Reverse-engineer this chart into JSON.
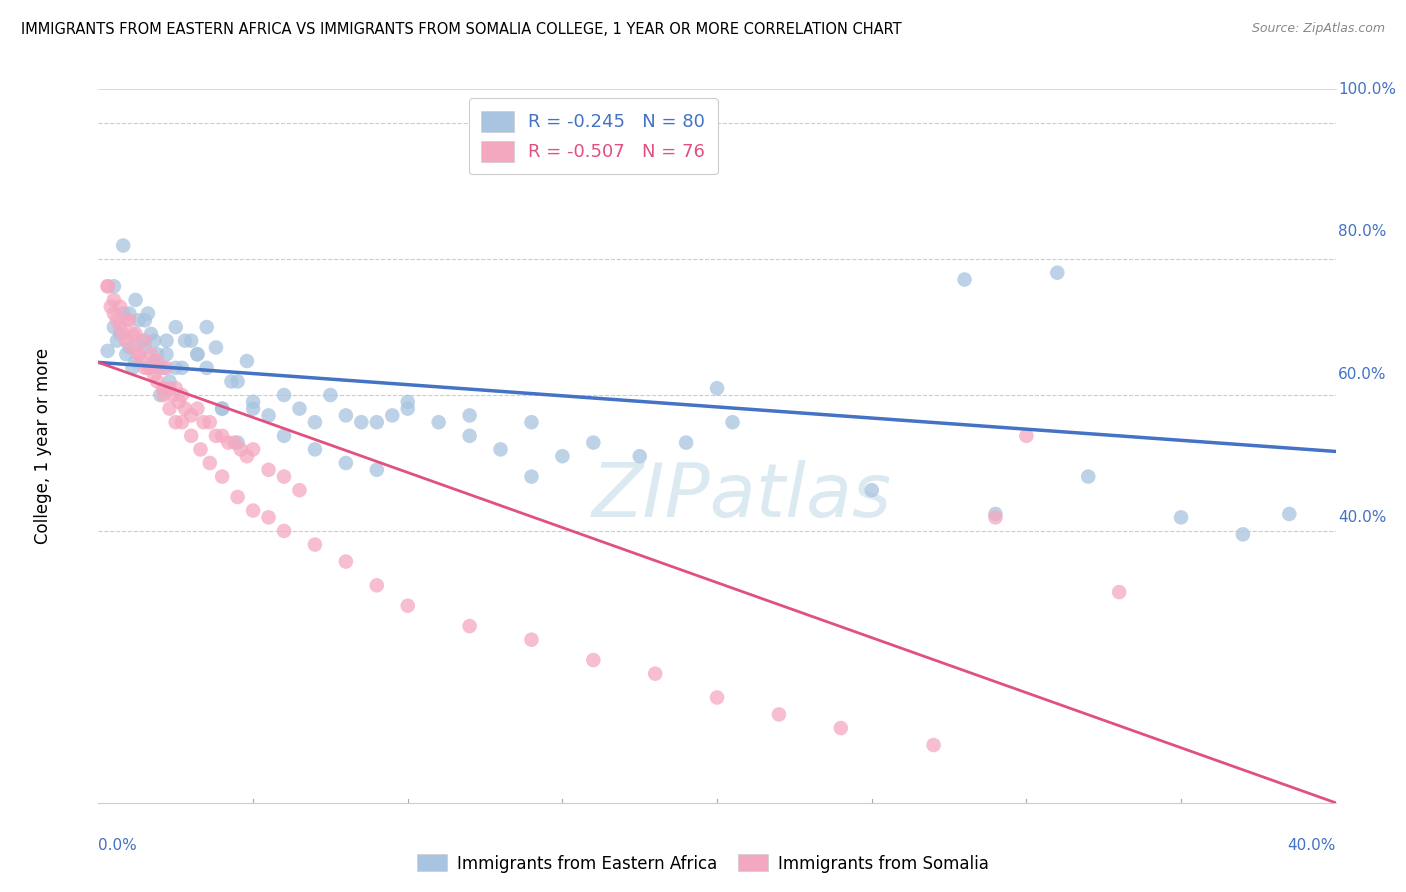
{
  "title": "IMMIGRANTS FROM EASTERN AFRICA VS IMMIGRANTS FROM SOMALIA COLLEGE, 1 YEAR OR MORE CORRELATION CHART",
  "source": "Source: ZipAtlas.com",
  "ylabel": "College, 1 year or more",
  "legend_label1": "Immigrants from Eastern Africa",
  "legend_label2": "Immigrants from Somalia",
  "R1": -0.245,
  "N1": 80,
  "R2": -0.507,
  "N2": 76,
  "color_blue": "#a8c4e0",
  "color_pink": "#f4a8c0",
  "line_color_blue": "#4472c4",
  "line_color_pink": "#e05080",
  "watermark": "ZIPatlas",
  "xlim": [
    0.0,
    0.4
  ],
  "ylim": [
    0.0,
    1.05
  ],
  "blue_line_x0": 0.0,
  "blue_line_y0": 0.648,
  "blue_line_x1": 0.4,
  "blue_line_y1": 0.517,
  "pink_line_x0": 0.0,
  "pink_line_y0": 0.648,
  "pink_line_x1": 0.4,
  "pink_line_y1": 0.0,
  "blue_points_x": [
    0.003,
    0.005,
    0.006,
    0.007,
    0.008,
    0.009,
    0.01,
    0.011,
    0.012,
    0.013,
    0.014,
    0.015,
    0.016,
    0.017,
    0.018,
    0.019,
    0.02,
    0.021,
    0.022,
    0.023,
    0.025,
    0.027,
    0.03,
    0.032,
    0.035,
    0.038,
    0.04,
    0.043,
    0.045,
    0.048,
    0.05,
    0.055,
    0.06,
    0.065,
    0.07,
    0.075,
    0.08,
    0.085,
    0.09,
    0.095,
    0.1,
    0.11,
    0.12,
    0.13,
    0.14,
    0.15,
    0.16,
    0.175,
    0.19,
    0.205,
    0.005,
    0.008,
    0.01,
    0.012,
    0.015,
    0.018,
    0.022,
    0.025,
    0.028,
    0.032,
    0.035,
    0.04,
    0.045,
    0.05,
    0.06,
    0.07,
    0.08,
    0.09,
    0.1,
    0.12,
    0.14,
    0.2,
    0.25,
    0.29,
    0.32,
    0.35,
    0.37,
    0.385,
    0.28,
    0.31
  ],
  "blue_points_y": [
    0.665,
    0.7,
    0.68,
    0.69,
    0.72,
    0.66,
    0.67,
    0.64,
    0.65,
    0.71,
    0.68,
    0.67,
    0.72,
    0.69,
    0.65,
    0.66,
    0.6,
    0.64,
    0.68,
    0.62,
    0.7,
    0.64,
    0.68,
    0.66,
    0.7,
    0.67,
    0.58,
    0.62,
    0.62,
    0.65,
    0.59,
    0.57,
    0.6,
    0.58,
    0.56,
    0.6,
    0.57,
    0.56,
    0.56,
    0.57,
    0.58,
    0.56,
    0.57,
    0.52,
    0.56,
    0.51,
    0.53,
    0.51,
    0.53,
    0.56,
    0.76,
    0.82,
    0.72,
    0.74,
    0.71,
    0.68,
    0.66,
    0.64,
    0.68,
    0.66,
    0.64,
    0.58,
    0.53,
    0.58,
    0.54,
    0.52,
    0.5,
    0.49,
    0.59,
    0.54,
    0.48,
    0.61,
    0.46,
    0.425,
    0.48,
    0.42,
    0.395,
    0.425,
    0.77,
    0.78
  ],
  "pink_points_x": [
    0.003,
    0.004,
    0.005,
    0.006,
    0.007,
    0.008,
    0.009,
    0.01,
    0.011,
    0.012,
    0.013,
    0.014,
    0.015,
    0.016,
    0.017,
    0.018,
    0.019,
    0.02,
    0.021,
    0.022,
    0.023,
    0.024,
    0.025,
    0.026,
    0.027,
    0.028,
    0.03,
    0.032,
    0.034,
    0.036,
    0.038,
    0.04,
    0.042,
    0.044,
    0.046,
    0.048,
    0.05,
    0.055,
    0.06,
    0.065,
    0.003,
    0.005,
    0.007,
    0.009,
    0.011,
    0.013,
    0.015,
    0.017,
    0.019,
    0.021,
    0.023,
    0.025,
    0.027,
    0.03,
    0.033,
    0.036,
    0.04,
    0.045,
    0.05,
    0.055,
    0.06,
    0.07,
    0.08,
    0.09,
    0.1,
    0.12,
    0.14,
    0.16,
    0.18,
    0.2,
    0.22,
    0.24,
    0.27,
    0.3,
    0.33,
    0.29
  ],
  "pink_points_y": [
    0.76,
    0.73,
    0.72,
    0.71,
    0.7,
    0.69,
    0.68,
    0.71,
    0.67,
    0.69,
    0.66,
    0.65,
    0.68,
    0.64,
    0.66,
    0.63,
    0.65,
    0.64,
    0.61,
    0.64,
    0.61,
    0.6,
    0.61,
    0.59,
    0.6,
    0.58,
    0.57,
    0.58,
    0.56,
    0.56,
    0.54,
    0.54,
    0.53,
    0.53,
    0.52,
    0.51,
    0.52,
    0.49,
    0.48,
    0.46,
    0.76,
    0.74,
    0.73,
    0.71,
    0.69,
    0.66,
    0.64,
    0.64,
    0.62,
    0.6,
    0.58,
    0.56,
    0.56,
    0.54,
    0.52,
    0.5,
    0.48,
    0.45,
    0.43,
    0.42,
    0.4,
    0.38,
    0.355,
    0.32,
    0.29,
    0.26,
    0.24,
    0.21,
    0.19,
    0.155,
    0.13,
    0.11,
    0.085,
    0.54,
    0.31,
    0.42
  ]
}
